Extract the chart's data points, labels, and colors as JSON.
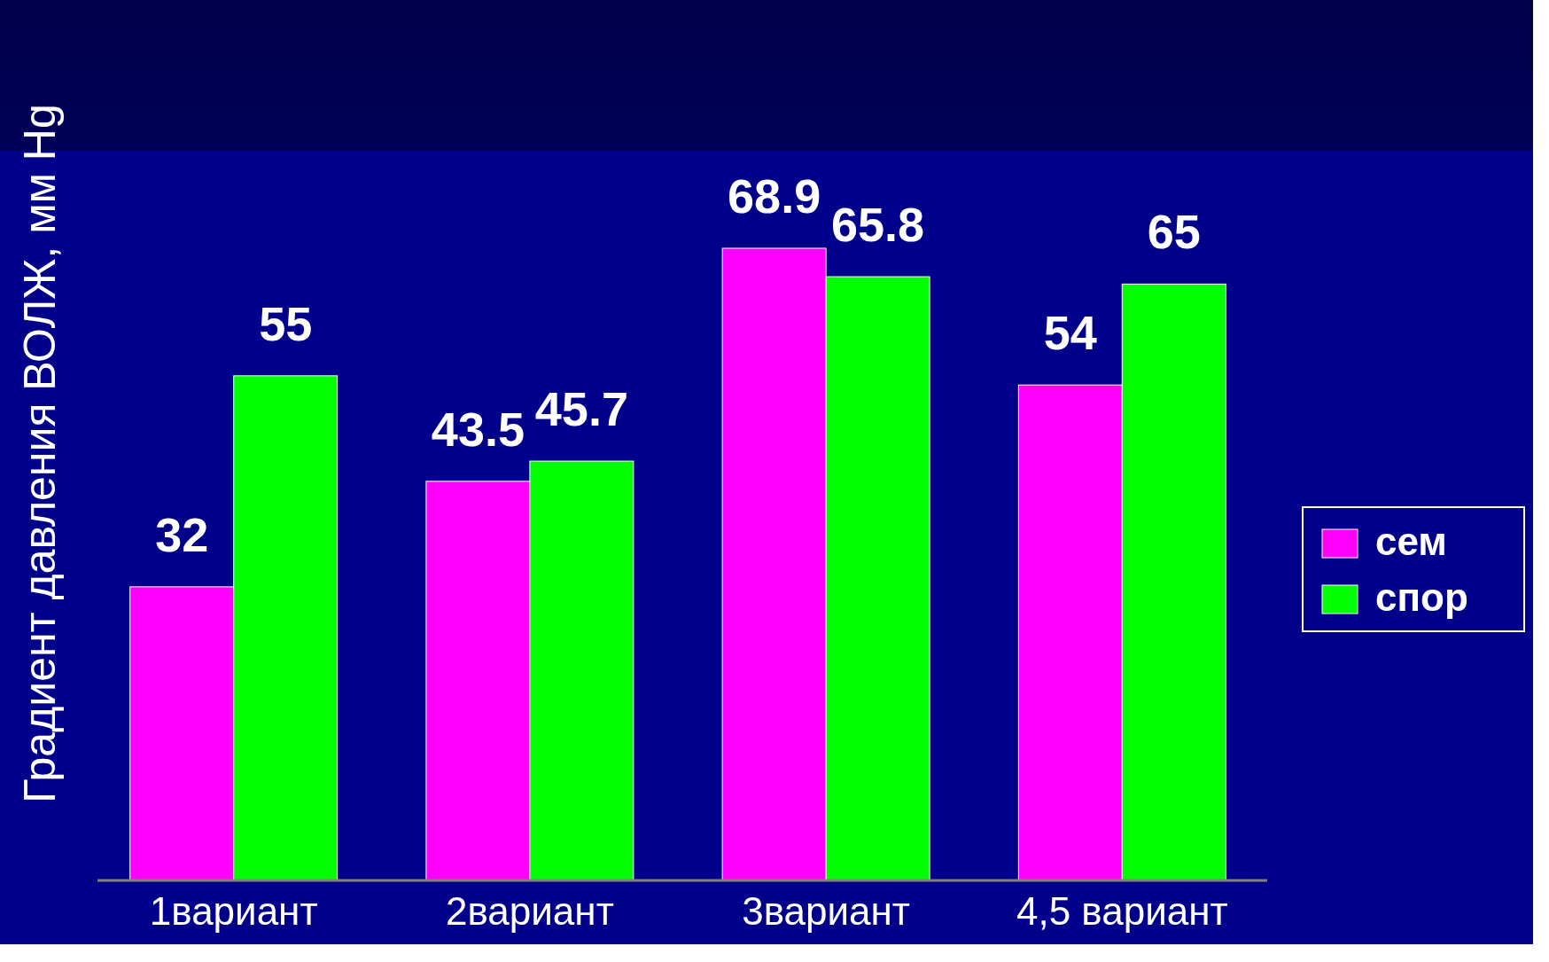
{
  "chart_data": {
    "type": "bar",
    "ylabel": "Градиент давления ВОЛЖ, мм Hg",
    "categories": [
      "1вариант",
      "2вариант",
      "3вариант",
      "4,5 вариант"
    ],
    "series": [
      {
        "name": "сем",
        "color": "#ff00ff",
        "values": [
          32,
          43.5,
          68.9,
          54
        ]
      },
      {
        "name": "спор",
        "color": "#00ff00",
        "values": [
          55,
          45.7,
          65.8,
          65
        ]
      }
    ],
    "data_labels": true,
    "legend": "right"
  }
}
